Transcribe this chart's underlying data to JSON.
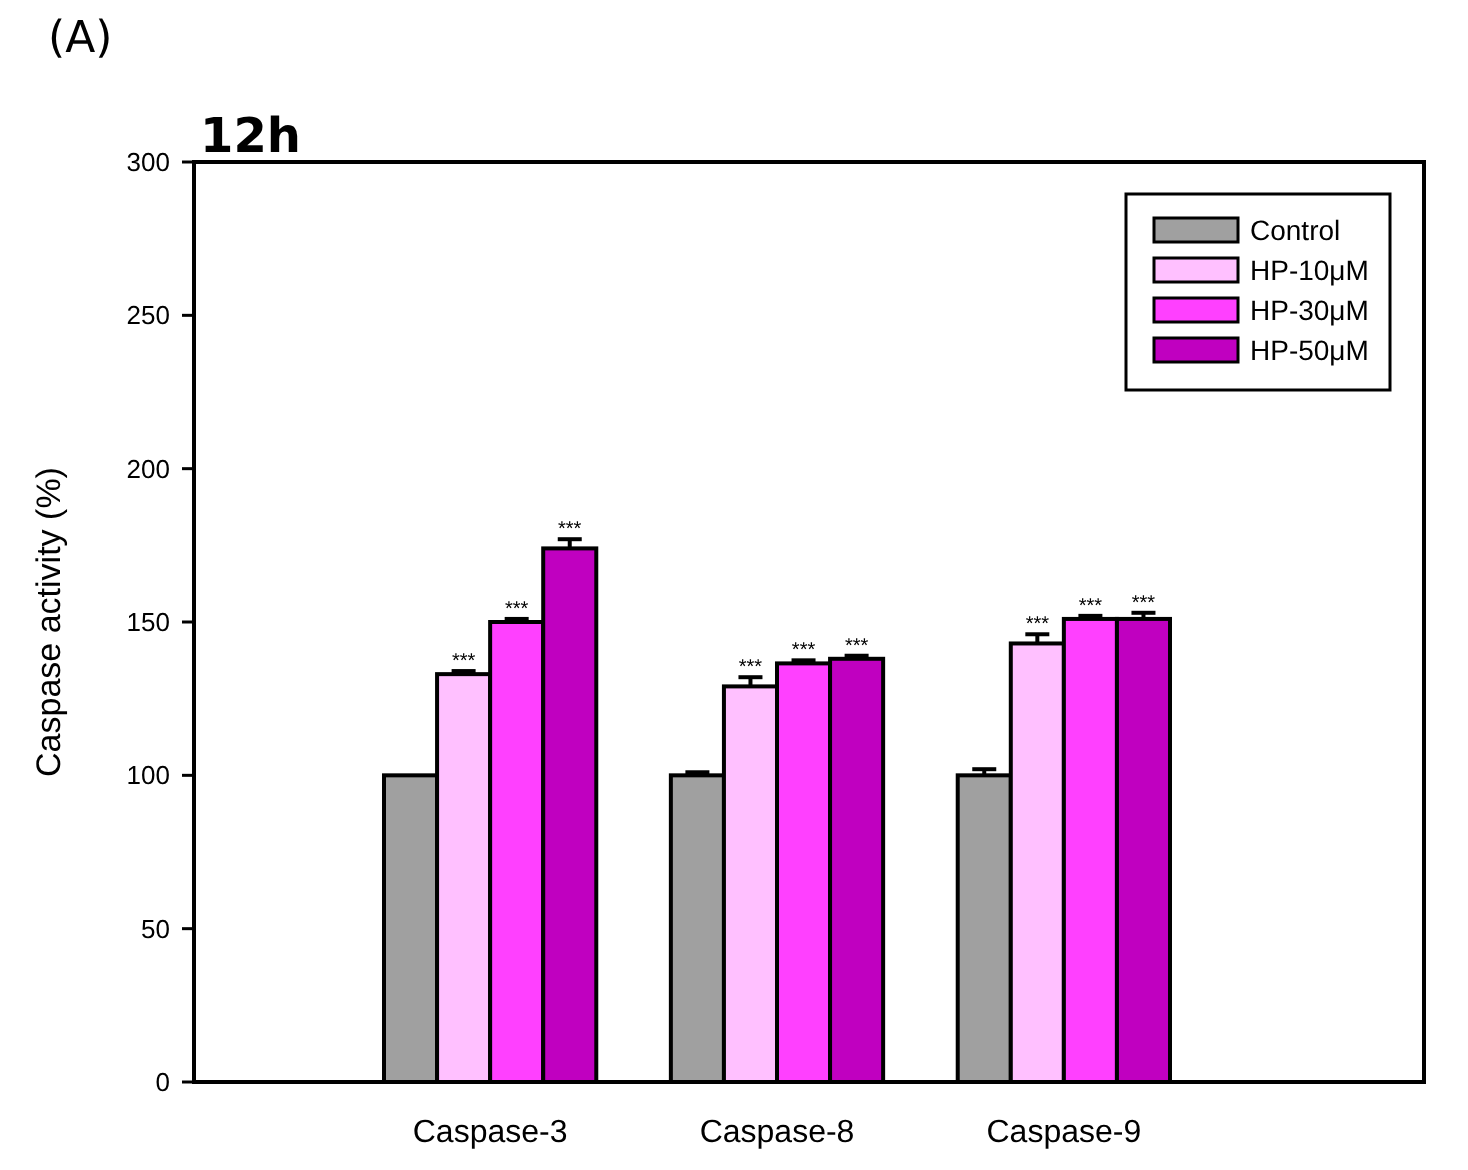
{
  "chart_data": {
    "type": "bar",
    "title": "12h",
    "ylabel": "Caspase activity (%)",
    "annotations": [
      "(A)"
    ],
    "categories": [
      "Caspase-3",
      "Caspase-8",
      "Caspase-9"
    ],
    "series": [
      {
        "name": "Control",
        "color": "#a0a0a0",
        "values": [
          100,
          100,
          100
        ],
        "errors": [
          null,
          1,
          2
        ]
      },
      {
        "name": "HP-10μM",
        "color": "#ffc0ff",
        "values": [
          133,
          129,
          143
        ],
        "errors": [
          1,
          3,
          3
        ],
        "value_labels": [
          "***",
          "***",
          "***"
        ]
      },
      {
        "name": "HP-30μM",
        "color": "#ff40ff",
        "values": [
          150,
          136.5,
          151
        ],
        "errors": [
          1,
          1,
          1
        ],
        "value_labels": [
          "***",
          "***",
          "***"
        ]
      },
      {
        "name": "HP-50μM",
        "color": "#c000c0",
        "values": [
          174,
          138,
          151
        ],
        "errors": [
          3,
          1,
          2
        ],
        "value_labels": [
          "***",
          "***",
          "***"
        ]
      }
    ],
    "ylim": [
      0,
      300
    ],
    "yticks": [
      0,
      50,
      100,
      150,
      200,
      250,
      300
    ],
    "legend": "top right"
  }
}
